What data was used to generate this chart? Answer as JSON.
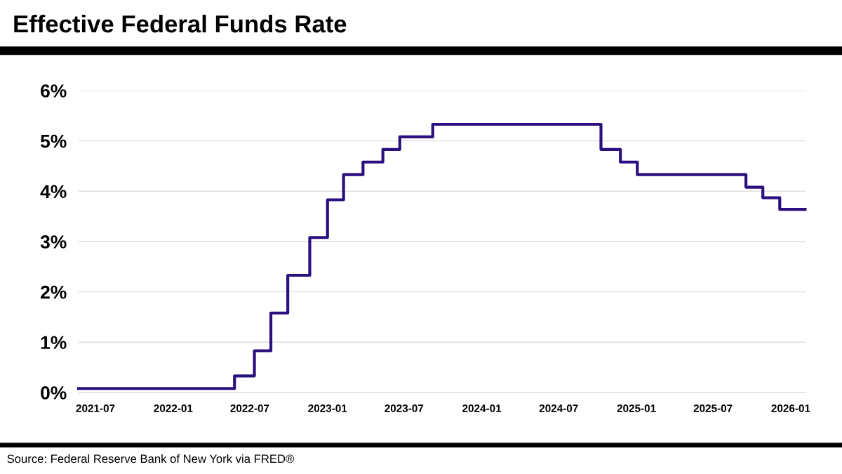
{
  "chart_data": {
    "type": "step",
    "title": "Effective Federal Funds Rate",
    "x": [
      "2021-05-22",
      "2022-05-26",
      "2022-07-12",
      "2022-08-20",
      "2022-09-29",
      "2022-11-20",
      "2023-01-01",
      "2023-02-08",
      "2023-03-26",
      "2023-05-12",
      "2023-06-21",
      "2023-09-07",
      "2024-10-09",
      "2024-11-24",
      "2025-01-03",
      "2025-09-17",
      "2025-10-27",
      "2025-12-06",
      "2026-02-04"
    ],
    "series": [
      {
        "color": "#2a0f7f",
        "values": [
          0.08,
          0.33,
          0.83,
          1.58,
          2.33,
          3.08,
          3.83,
          4.33,
          4.58,
          4.83,
          5.08,
          5.33,
          4.83,
          4.58,
          4.33,
          4.08,
          3.87,
          3.64,
          3.64
        ]
      }
    ],
    "xlim": [
      "2021-05-22",
      "2026-02-05"
    ],
    "xticks": [
      "2021-07",
      "2022-01",
      "2022-07",
      "2023-01",
      "2023-07",
      "2024-01",
      "2024-07",
      "2025-01",
      "2025-07",
      "2026-01"
    ],
    "ylim": [
      0,
      6
    ],
    "yticks": [
      {
        "value": 0,
        "label": "0%"
      },
      {
        "value": 1,
        "label": "1%"
      },
      {
        "value": 2,
        "label": "2%"
      },
      {
        "value": 3,
        "label": "3%"
      },
      {
        "value": 4,
        "label": "4%"
      },
      {
        "value": 5,
        "label": "5%"
      },
      {
        "value": 6,
        "label": "6%"
      }
    ],
    "grid": "y",
    "annotations": [
      "Source: Federal Reserve Bank of New York via FRED®"
    ]
  }
}
